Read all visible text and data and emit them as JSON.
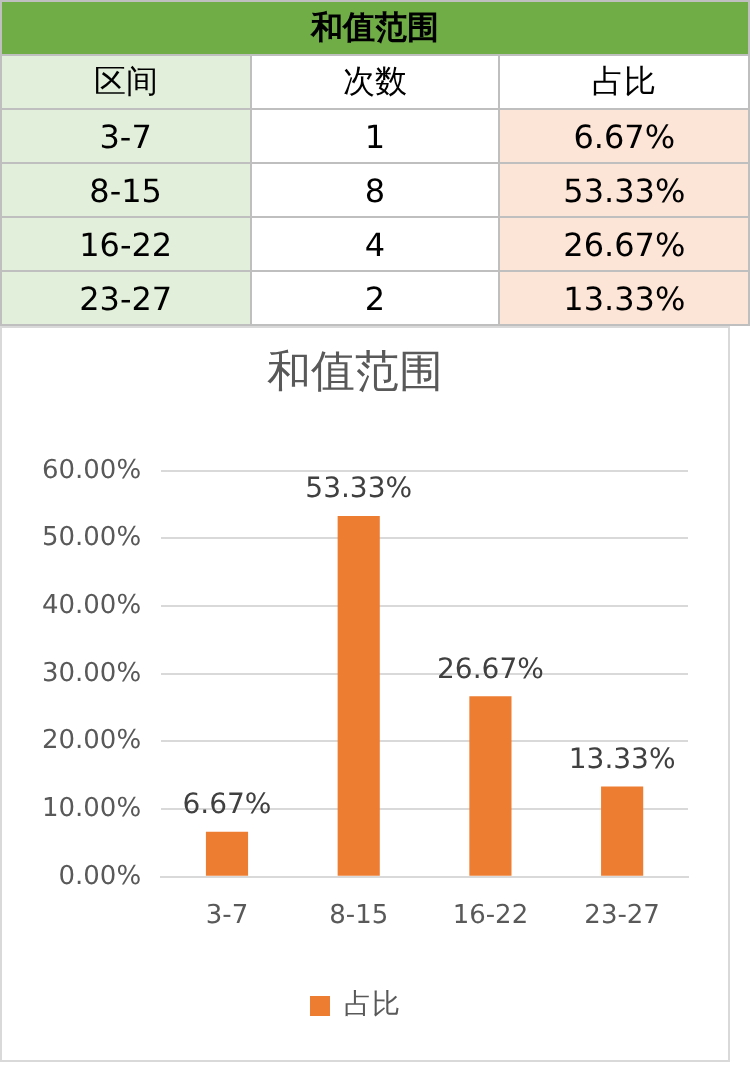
{
  "chart_data": [
    {
      "type": "other",
      "title": "和值范围",
      "xlabel": "区间",
      "data_labels": true,
      "categories": [
        "3-7",
        "8-15",
        "16-22",
        "23-27"
      ],
      "series": [
        {
          "name": "次数",
          "values": [
            1,
            8,
            4,
            2
          ]
        },
        {
          "name": "占比",
          "values": [
            6.67,
            53.33,
            26.67,
            13.33
          ],
          "value_labels": [
            "6.67%",
            "53.33%",
            "26.67%",
            "13.33%"
          ]
        }
      ]
    },
    {
      "type": "bar",
      "title": "和值范围",
      "categories": [
        "3-7",
        "8-15",
        "16-22",
        "23-27"
      ],
      "series": [
        {
          "name": "占比",
          "color": "#ed7d31",
          "values": [
            6.67,
            53.33,
            26.67,
            13.33
          ],
          "value_labels": [
            "6.67%",
            "53.33%",
            "26.67%",
            "13.33%"
          ]
        }
      ],
      "ylim": [
        0,
        60
      ],
      "yticks": [
        {
          "value": 0,
          "label": "0.00%"
        },
        {
          "value": 10,
          "label": "10.00%"
        },
        {
          "value": 20,
          "label": "20.00%"
        },
        {
          "value": 30,
          "label": "30.00%"
        },
        {
          "value": 40,
          "label": "40.00%"
        },
        {
          "value": 50,
          "label": "50.00%"
        },
        {
          "value": 60,
          "label": "60.00%"
        }
      ],
      "grid": "y",
      "legend": "bottom"
    }
  ]
}
